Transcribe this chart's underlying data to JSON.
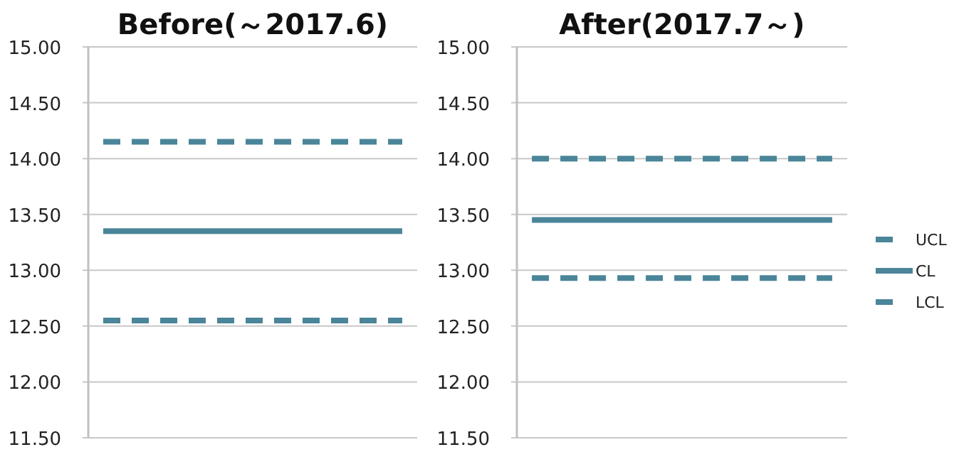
{
  "chart_data": [
    {
      "type": "line",
      "title": "Before(～2017.6)",
      "categories": [
        null,
        null,
        null,
        null,
        null,
        null,
        null,
        null,
        null,
        null,
        null
      ],
      "grid": "y",
      "legend": false,
      "ylim": [
        11.5,
        15
      ],
      "yticks": [
        {
          "value": 11.5,
          "label": "11.50"
        },
        {
          "value": 12,
          "label": "12.00"
        },
        {
          "value": 12.5,
          "label": "12.50"
        },
        {
          "value": 13,
          "label": "13.00"
        },
        {
          "value": 13.5,
          "label": "13.50"
        },
        {
          "value": 14,
          "label": "14.00"
        },
        {
          "value": 14.5,
          "label": "14.50"
        },
        {
          "value": 15,
          "label": "15.00"
        }
      ],
      "series": [
        {
          "color": "#4a8599",
          "line_style": "dashed",
          "values": [
            14.15,
            14.15,
            14.15,
            14.15,
            14.15,
            14.15,
            14.15,
            14.15,
            14.15,
            14.15,
            14.15
          ]
        },
        {
          "color": "#4a8599",
          "line_style": "solid",
          "values": [
            13.35,
            13.35,
            13.35,
            13.35,
            13.35,
            13.35,
            13.35,
            13.35,
            13.35,
            13.35,
            13.35
          ]
        },
        {
          "color": "#4a8599",
          "line_style": "dashed",
          "values": [
            12.55,
            12.55,
            12.55,
            12.55,
            12.55,
            12.55,
            12.55,
            12.55,
            12.55,
            12.55,
            12.55
          ]
        }
      ]
    },
    {
      "type": "line",
      "title": "After(2017.7～)",
      "categories": [
        null,
        null,
        null,
        null,
        null,
        null,
        null,
        null,
        null,
        null,
        null
      ],
      "grid": "y",
      "legend": "right",
      "ylim": [
        11.5,
        15
      ],
      "yticks": [
        {
          "value": 11.5,
          "label": "11.50"
        },
        {
          "value": 12,
          "label": "12.00"
        },
        {
          "value": 12.5,
          "label": "12.50"
        },
        {
          "value": 13,
          "label": "13.00"
        },
        {
          "value": 13.5,
          "label": "13.50"
        },
        {
          "value": 14,
          "label": "14.00"
        },
        {
          "value": 14.5,
          "label": "14.50"
        },
        {
          "value": 15,
          "label": "15.00"
        }
      ],
      "series": [
        {
          "name": "UCL",
          "color": "#4a8599",
          "line_style": "dashed",
          "values": [
            14.0,
            14.0,
            14.0,
            14.0,
            14.0,
            14.0,
            14.0,
            14.0,
            14.0,
            14.0,
            14.0
          ]
        },
        {
          "name": "CL",
          "color": "#4a8599",
          "line_style": "solid",
          "values": [
            13.45,
            13.45,
            13.45,
            13.45,
            13.45,
            13.45,
            13.45,
            13.45,
            13.45,
            13.45,
            13.45
          ]
        },
        {
          "name": "LCL",
          "color": "#4a8599",
          "line_style": "dashed",
          "values": [
            12.93,
            12.93,
            12.93,
            12.93,
            12.93,
            12.93,
            12.93,
            12.93,
            12.93,
            12.93,
            12.93
          ]
        }
      ]
    }
  ]
}
